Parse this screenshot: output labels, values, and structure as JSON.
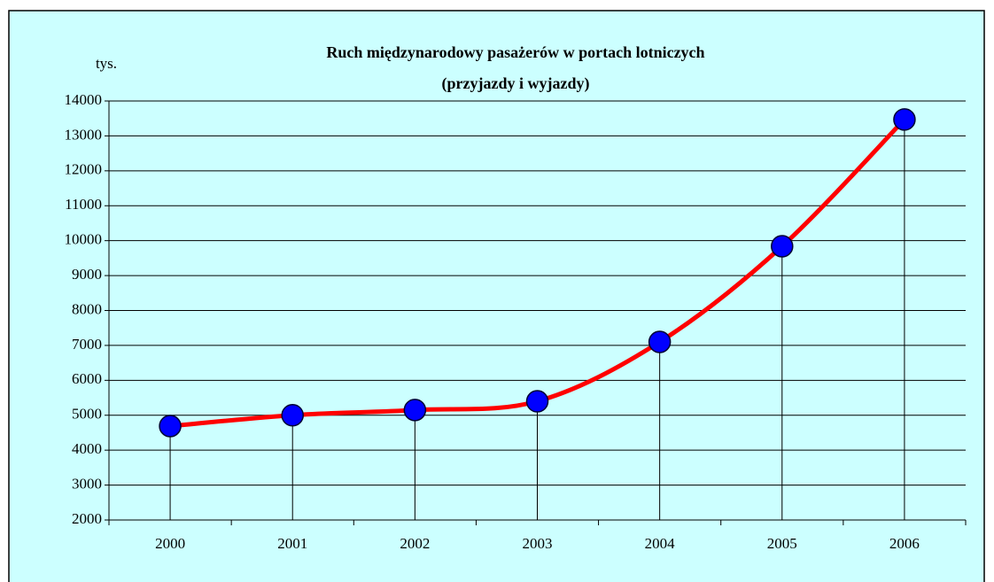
{
  "chart_data": {
    "type": "line",
    "title": "Ruch międzynarodowy pasażerów w portach lotniczych",
    "subtitle": "(przyjazdy i wyjazdy)",
    "y_label": "tys.",
    "categories": [
      "2000",
      "2001",
      "2002",
      "2003",
      "2004",
      "2005",
      "2006"
    ],
    "series": [
      {
        "name": "Ruch międzynarodowy",
        "color": "#ff0000",
        "marker_color": "#0000ff",
        "values": [
          4690,
          5000,
          5150,
          5400,
          7100,
          9840,
          13470
        ]
      }
    ],
    "ylim": [
      2000,
      14000
    ],
    "yticks": [
      2000,
      3000,
      4000,
      5000,
      6000,
      7000,
      8000,
      9000,
      10000,
      11000,
      12000,
      13000,
      14000
    ],
    "grid": true,
    "smooth": true,
    "drop_lines": true
  }
}
